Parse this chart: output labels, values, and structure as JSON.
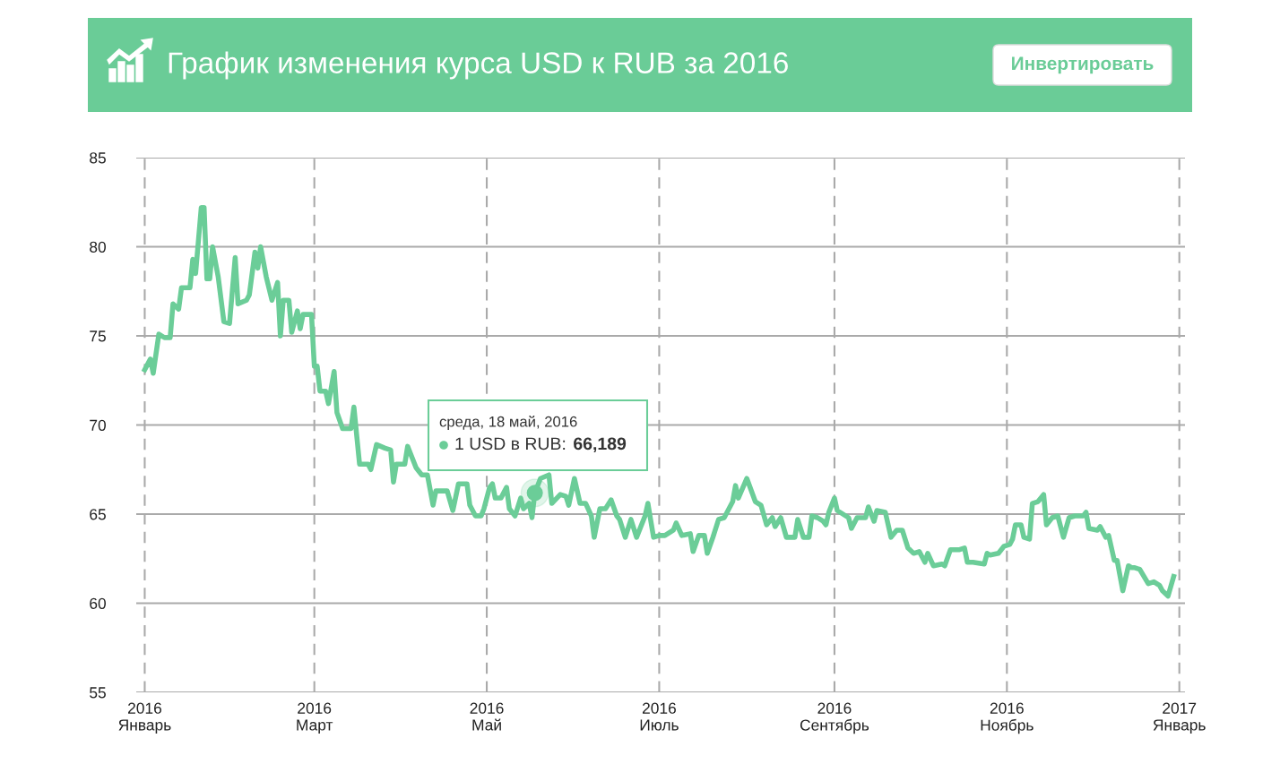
{
  "chart_data": {
    "type": "line",
    "title": "График изменения курса USD к RUB за 2016",
    "annotations": [
      "Инвертировать",
      {
        "text": "среда, 18 май, 2016\n1 USD в RUB: 66,189",
        "x": "2016-05-18",
        "y": 66.189
      }
    ],
    "x": [
      "2016-01-01",
      "2016-01-03",
      "2016-01-04",
      "2016-01-06",
      "2016-01-08",
      "2016-01-10",
      "2016-01-11",
      "2016-01-13",
      "2016-01-14",
      "2016-01-17",
      "2016-01-18",
      "2016-01-19",
      "2016-01-21",
      "2016-01-22",
      "2016-01-23",
      "2016-01-24",
      "2016-01-25",
      "2016-01-27",
      "2016-01-29",
      "2016-01-31",
      "2016-02-02",
      "2016-02-03",
      "2016-02-06",
      "2016-02-07",
      "2016-02-09",
      "2016-02-10",
      "2016-02-11",
      "2016-02-13",
      "2016-02-15",
      "2016-02-17",
      "2016-02-18",
      "2016-02-19",
      "2016-02-21",
      "2016-02-22",
      "2016-02-24",
      "2016-02-25",
      "2016-02-26",
      "2016-02-29",
      "2016-03-01",
      "2016-03-02",
      "2016-03-03",
      "2016-03-05",
      "2016-03-06",
      "2016-03-08",
      "2016-03-09",
      "2016-03-11",
      "2016-03-14",
      "2016-03-15",
      "2016-03-17",
      "2016-03-20",
      "2016-03-21",
      "2016-03-23",
      "2016-03-26",
      "2016-03-28",
      "2016-03-29",
      "2016-03-30",
      "2016-04-02",
      "2016-04-03",
      "2016-04-05",
      "2016-04-06",
      "2016-04-08",
      "2016-04-10",
      "2016-04-12",
      "2016-04-13",
      "2016-04-15",
      "2016-04-17",
      "2016-04-19",
      "2016-04-21",
      "2016-04-24",
      "2016-04-25",
      "2016-04-27",
      "2016-04-29",
      "2016-04-30",
      "2016-05-02",
      "2016-05-03",
      "2016-05-04",
      "2016-05-06",
      "2016-05-08",
      "2016-05-09",
      "2016-05-11",
      "2016-05-13",
      "2016-05-14",
      "2016-05-16",
      "2016-05-17",
      "2016-05-18",
      "2016-05-20",
      "2016-05-23",
      "2016-05-24",
      "2016-05-27",
      "2016-05-29",
      "2016-05-30",
      "2016-06-01",
      "2016-06-03",
      "2016-06-05",
      "2016-06-07",
      "2016-06-08",
      "2016-06-10",
      "2016-06-12",
      "2016-06-14",
      "2016-06-16",
      "2016-06-17",
      "2016-06-19",
      "2016-06-21",
      "2016-06-23",
      "2016-06-26",
      "2016-06-27",
      "2016-06-29",
      "2016-07-01",
      "2016-07-03",
      "2016-07-06",
      "2016-07-07",
      "2016-07-09",
      "2016-07-12",
      "2016-07-13",
      "2016-07-15",
      "2016-07-17",
      "2016-07-18",
      "2016-07-20",
      "2016-07-22",
      "2016-07-24",
      "2016-07-27",
      "2016-07-28",
      "2016-07-29",
      "2016-08-01",
      "2016-08-04",
      "2016-08-06",
      "2016-08-08",
      "2016-08-10",
      "2016-08-11",
      "2016-08-13",
      "2016-08-15",
      "2016-08-18",
      "2016-08-19",
      "2016-08-21",
      "2016-08-23",
      "2016-08-24",
      "2016-08-26",
      "2016-08-28",
      "2016-08-29",
      "2016-08-30",
      "2016-09-01",
      "2016-09-02",
      "2016-09-06",
      "2016-09-07",
      "2016-09-09",
      "2016-09-12",
      "2016-09-13",
      "2016-09-15",
      "2016-09-16",
      "2016-09-19",
      "2016-09-21",
      "2016-09-23",
      "2016-09-25",
      "2016-09-27",
      "2016-09-29",
      "2016-10-01",
      "2016-10-03",
      "2016-10-04",
      "2016-10-06",
      "2016-10-09",
      "2016-10-10",
      "2016-10-12",
      "2016-10-15",
      "2016-10-17",
      "2016-10-18",
      "2016-10-20",
      "2016-10-24",
      "2016-10-25",
      "2016-10-26",
      "2016-10-29",
      "2016-10-31",
      "2016-11-02",
      "2016-11-03",
      "2016-11-04",
      "2016-11-06",
      "2016-11-07",
      "2016-11-09",
      "2016-11-10",
      "2016-11-12",
      "2016-11-14",
      "2016-11-15",
      "2016-11-17",
      "2016-11-19",
      "2016-11-21",
      "2016-11-23",
      "2016-11-25",
      "2016-11-28",
      "2016-11-29",
      "2016-11-30",
      "2016-12-03",
      "2016-12-04",
      "2016-12-06",
      "2016-12-07",
      "2016-12-09",
      "2016-12-10",
      "2016-12-12",
      "2016-12-14",
      "2016-12-15",
      "2016-12-16",
      "2016-12-18",
      "2016-12-21",
      "2016-12-23",
      "2016-12-25",
      "2016-12-26",
      "2016-12-28",
      "2016-12-30"
    ],
    "series": [
      {
        "color": "#6bcd98",
        "values": [
          73.1,
          73.7,
          72.9,
          75.1,
          74.9,
          74.9,
          76.8,
          76.5,
          77.7,
          77.7,
          79.3,
          78.5,
          82.2,
          82.2,
          78.2,
          78.2,
          80.0,
          78.3,
          75.8,
          75.7,
          79.4,
          76.8,
          77.0,
          77.3,
          79.7,
          78.8,
          80.0,
          78.3,
          77.0,
          78.0,
          75.0,
          77.0,
          77.0,
          75.2,
          76.4,
          75.4,
          76.2,
          76.2,
          73.3,
          73.3,
          71.9,
          71.9,
          71.2,
          73.0,
          70.7,
          69.8,
          69.8,
          71.0,
          67.8,
          67.8,
          67.5,
          68.9,
          68.7,
          68.6,
          66.8,
          67.8,
          67.8,
          68.8,
          68.0,
          67.6,
          67.2,
          67.2,
          65.5,
          66.3,
          66.3,
          66.3,
          65.2,
          66.7,
          66.7,
          65.5,
          64.9,
          64.9,
          65.3,
          66.5,
          66.7,
          65.9,
          65.9,
          66.5,
          65.3,
          64.9,
          65.9,
          65.3,
          65.6,
          64.8,
          66.189,
          67.0,
          67.2,
          65.6,
          66.1,
          66.0,
          65.5,
          67.0,
          65.6,
          65.6,
          64.9,
          63.7,
          65.3,
          65.3,
          65.8,
          64.9,
          64.7,
          63.7,
          64.7,
          63.7,
          64.9,
          65.6,
          63.7,
          63.8,
          63.8,
          64.1,
          64.5,
          63.8,
          63.9,
          62.9,
          63.8,
          63.8,
          62.8,
          63.7,
          64.7,
          64.8,
          65.7,
          66.6,
          65.9,
          67.0,
          65.7,
          65.5,
          64.4,
          64.8,
          64.3,
          64.8,
          63.7,
          63.7,
          64.7,
          63.7,
          63.7,
          64.9,
          64.8,
          64.6,
          64.4,
          65.1,
          65.9,
          65.2,
          64.8,
          64.2,
          64.8,
          64.8,
          65.4,
          64.6,
          65.2,
          65.1,
          63.7,
          64.1,
          64.1,
          63.1,
          62.8,
          62.9,
          62.3,
          62.8,
          62.1,
          62.2,
          62.1,
          63.0,
          63.0,
          63.1,
          62.3,
          62.3,
          62.2,
          62.8,
          62.7,
          62.8,
          63.2,
          63.3,
          63.6,
          64.4,
          64.4,
          63.7,
          63.6,
          65.6,
          65.7,
          66.1,
          64.4,
          64.8,
          64.9,
          63.7,
          64.8,
          64.9,
          64.9,
          65.1,
          64.2,
          64.1,
          64.3,
          63.7,
          63.8,
          62.4,
          62.4,
          60.7,
          62.1,
          62.0,
          62.0,
          61.9,
          61.1,
          61.2,
          61.0,
          60.7,
          60.4,
          61.5
        ]
      }
    ],
    "xlim": [
      "2015-12-29",
      "2017-01-03"
    ],
    "xticks": [
      {
        "value": "2016-01-01",
        "label": "2016\nЯнварь"
      },
      {
        "value": "2016-03-01",
        "label": "2016\nМарт"
      },
      {
        "value": "2016-05-01",
        "label": "2016\nМай"
      },
      {
        "value": "2016-07-01",
        "label": "2016\nИюль"
      },
      {
        "value": "2016-09-01",
        "label": "2016\nСентябрь"
      },
      {
        "value": "2016-11-01",
        "label": "2016\nНоябрь"
      },
      {
        "value": "2017-01-01",
        "label": "2017\nЯнварь"
      }
    ],
    "ylim": [
      55,
      85
    ],
    "yticks": [
      55,
      60,
      65,
      70,
      75,
      80,
      85
    ],
    "grid": true,
    "marker": "none",
    "line_style": "solid"
  }
}
